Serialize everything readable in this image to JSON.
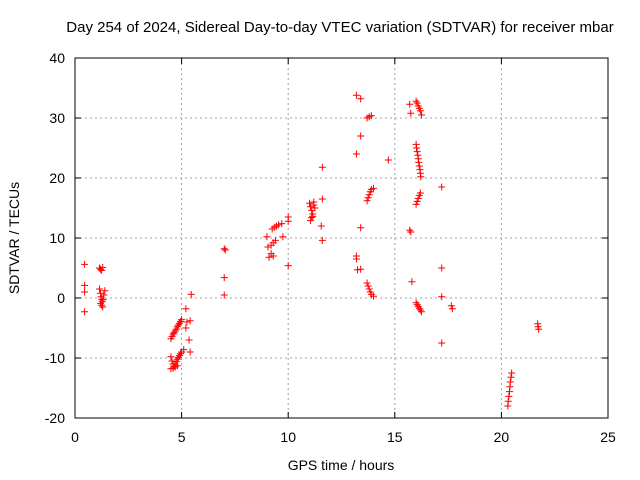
{
  "chart_data": {
    "type": "scatter",
    "title": "Day 254 of 2024, Sidereal Day-to-day VTEC variation (SDTVAR) for receiver mbar",
    "xlabel": "GPS time / hours",
    "ylabel": "SDTVAR / TECUs",
    "xlim": [
      0,
      25
    ],
    "ylim": [
      -20,
      40
    ],
    "xticks": [
      0,
      5,
      10,
      15,
      20,
      25
    ],
    "yticks": [
      -20,
      -10,
      0,
      10,
      20,
      30,
      40
    ],
    "xtick_labels": [
      "0",
      "5",
      "10",
      "15",
      "20",
      "25"
    ],
    "ytick_labels": [
      "-20",
      "-10",
      "0",
      "10",
      "20",
      "30",
      "40"
    ],
    "grid": true,
    "marker": "+",
    "color": "#ff0000",
    "series": [
      {
        "name": "SDTVAR",
        "points": [
          [
            0.45,
            5.6
          ],
          [
            0.45,
            2.1
          ],
          [
            0.45,
            1.0
          ],
          [
            0.45,
            -2.3
          ],
          [
            1.15,
            5.0
          ],
          [
            1.2,
            4.8
          ],
          [
            1.25,
            4.6
          ],
          [
            1.3,
            5.1
          ],
          [
            1.15,
            1.5
          ],
          [
            1.2,
            0.8
          ],
          [
            1.22,
            0.2
          ],
          [
            1.25,
            -0.2
          ],
          [
            1.28,
            -0.6
          ],
          [
            1.2,
            -0.9
          ],
          [
            1.25,
            -1.2
          ],
          [
            1.3,
            -1.5
          ],
          [
            1.35,
            0.5
          ],
          [
            1.4,
            1.2
          ],
          [
            1.32,
            -0.3
          ],
          [
            4.5,
            -6.8
          ],
          [
            4.55,
            -6.4
          ],
          [
            4.6,
            -6.0
          ],
          [
            4.65,
            -5.8
          ],
          [
            4.7,
            -5.5
          ],
          [
            4.75,
            -5.2
          ],
          [
            4.8,
            -4.8
          ],
          [
            4.85,
            -4.5
          ],
          [
            4.9,
            -4.2
          ],
          [
            4.95,
            -3.9
          ],
          [
            5.0,
            -3.6
          ],
          [
            4.5,
            -9.8
          ],
          [
            4.55,
            -10.5
          ],
          [
            4.6,
            -11.0
          ],
          [
            4.65,
            -11.4
          ],
          [
            4.7,
            -11.0
          ],
          [
            4.75,
            -10.6
          ],
          [
            4.8,
            -10.2
          ],
          [
            4.85,
            -9.9
          ],
          [
            4.9,
            -9.6
          ],
          [
            4.95,
            -9.3
          ],
          [
            4.5,
            -11.8
          ],
          [
            4.6,
            -11.7
          ],
          [
            4.7,
            -11.5
          ],
          [
            4.8,
            -11.3
          ],
          [
            5.0,
            -9.0
          ],
          [
            5.1,
            -8.6
          ],
          [
            5.2,
            -5.0
          ],
          [
            5.25,
            -4.0
          ],
          [
            5.2,
            -1.8
          ],
          [
            5.4,
            -3.8
          ],
          [
            5.35,
            -7.0
          ],
          [
            5.4,
            -9.0
          ],
          [
            5.45,
            0.6
          ],
          [
            7.0,
            8.2
          ],
          [
            7.05,
            8.0
          ],
          [
            7.0,
            3.4
          ],
          [
            7.0,
            0.5
          ],
          [
            9.0,
            10.2
          ],
          [
            9.05,
            8.5
          ],
          [
            9.1,
            6.8
          ],
          [
            9.2,
            7.4
          ],
          [
            9.3,
            7.0
          ],
          [
            9.2,
            8.8
          ],
          [
            9.3,
            9.2
          ],
          [
            9.4,
            9.6
          ],
          [
            9.25,
            11.5
          ],
          [
            9.35,
            11.8
          ],
          [
            9.45,
            12.0
          ],
          [
            9.55,
            12.2
          ],
          [
            9.7,
            12.4
          ],
          [
            9.75,
            10.2
          ],
          [
            10.0,
            13.5
          ],
          [
            10.0,
            12.8
          ],
          [
            10.0,
            5.4
          ],
          [
            11.0,
            15.8
          ],
          [
            11.05,
            15.2
          ],
          [
            11.1,
            14.6
          ],
          [
            11.15,
            14.0
          ],
          [
            11.1,
            13.4
          ],
          [
            11.05,
            12.9
          ],
          [
            11.2,
            15.5
          ],
          [
            11.25,
            15.0
          ],
          [
            11.2,
            16.0
          ],
          [
            11.15,
            13.6
          ],
          [
            11.6,
            21.8
          ],
          [
            11.6,
            16.5
          ],
          [
            11.55,
            12.0
          ],
          [
            11.6,
            9.6
          ],
          [
            13.2,
            33.8
          ],
          [
            13.4,
            33.2
          ],
          [
            13.4,
            27.0
          ],
          [
            13.2,
            24.0
          ],
          [
            13.2,
            7.0
          ],
          [
            13.2,
            6.5
          ],
          [
            13.25,
            4.7
          ],
          [
            13.4,
            4.8
          ],
          [
            13.4,
            11.7
          ],
          [
            13.7,
            30.0
          ],
          [
            13.8,
            30.2
          ],
          [
            13.9,
            30.4
          ],
          [
            13.7,
            16.2
          ],
          [
            13.75,
            16.7
          ],
          [
            13.8,
            17.2
          ],
          [
            13.85,
            17.7
          ],
          [
            13.9,
            18.1
          ],
          [
            14.0,
            18.3
          ],
          [
            13.7,
            2.5
          ],
          [
            13.75,
            2.0
          ],
          [
            13.8,
            1.5
          ],
          [
            13.85,
            1.0
          ],
          [
            13.9,
            0.6
          ],
          [
            14.0,
            0.3
          ],
          [
            14.7,
            23.0
          ],
          [
            15.7,
            32.3
          ],
          [
            15.75,
            30.8
          ],
          [
            15.7,
            11.3
          ],
          [
            15.75,
            11.0
          ],
          [
            15.8,
            2.7
          ],
          [
            16.0,
            32.8
          ],
          [
            16.05,
            32.5
          ],
          [
            16.1,
            32.0
          ],
          [
            16.15,
            31.6
          ],
          [
            16.2,
            31.2
          ],
          [
            16.25,
            30.5
          ],
          [
            16.0,
            25.6
          ],
          [
            16.02,
            25.0
          ],
          [
            16.05,
            24.4
          ],
          [
            16.08,
            23.8
          ],
          [
            16.1,
            23.2
          ],
          [
            16.12,
            22.6
          ],
          [
            16.15,
            22.0
          ],
          [
            16.18,
            21.4
          ],
          [
            16.2,
            20.8
          ],
          [
            16.22,
            20.2
          ],
          [
            16.0,
            15.6
          ],
          [
            16.05,
            16.1
          ],
          [
            16.1,
            16.6
          ],
          [
            16.15,
            17.1
          ],
          [
            16.2,
            17.5
          ],
          [
            16.0,
            -0.8
          ],
          [
            16.05,
            -1.1
          ],
          [
            16.1,
            -1.4
          ],
          [
            16.15,
            -1.7
          ],
          [
            16.2,
            -2.0
          ],
          [
            16.25,
            -2.3
          ],
          [
            17.2,
            18.5
          ],
          [
            17.2,
            5.0
          ],
          [
            17.2,
            0.2
          ],
          [
            17.2,
            -7.5
          ],
          [
            17.65,
            -1.3
          ],
          [
            17.7,
            -1.8
          ],
          [
            20.3,
            -18.0
          ],
          [
            20.32,
            -17.2
          ],
          [
            20.35,
            -16.4
          ],
          [
            20.38,
            -15.6
          ],
          [
            20.4,
            -14.8
          ],
          [
            20.42,
            -14.0
          ],
          [
            20.45,
            -13.2
          ],
          [
            20.48,
            -12.5
          ],
          [
            21.7,
            -4.3
          ],
          [
            21.72,
            -4.8
          ],
          [
            21.75,
            -5.2
          ]
        ]
      }
    ]
  }
}
